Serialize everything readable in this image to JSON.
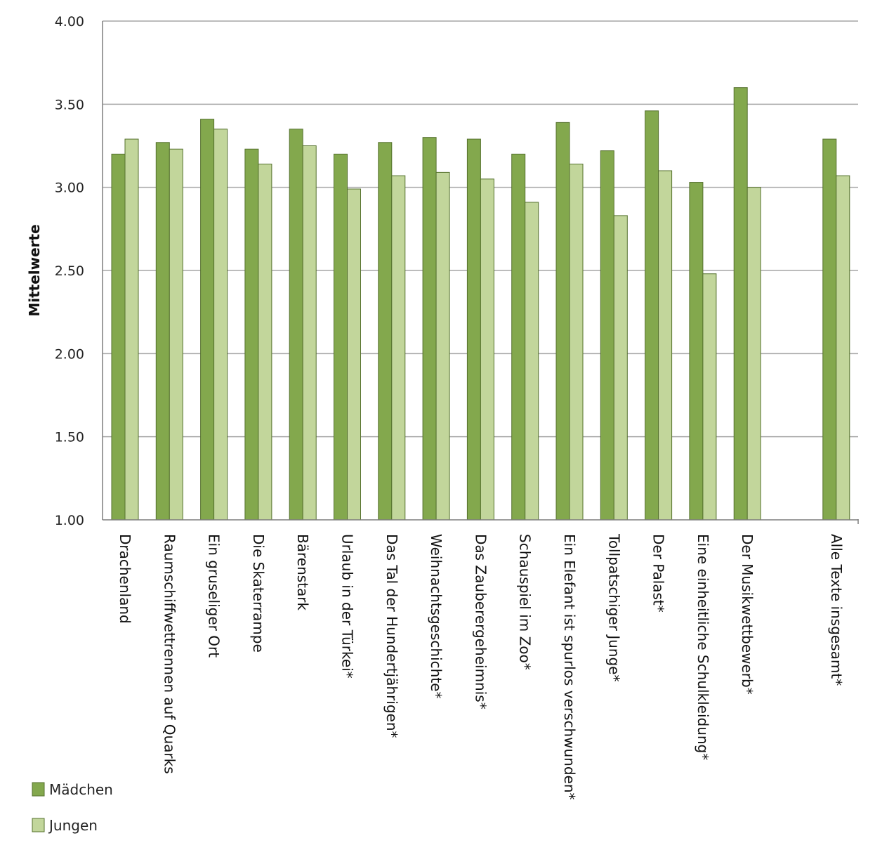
{
  "colors": {
    "maedchen": "#83a84d",
    "jungen": "#c2d69b",
    "bar_outline": "#55712e",
    "gridline": "#a6a6a6",
    "axis": "#7f7f7f"
  },
  "chart_data": {
    "type": "bar",
    "ylabel": "Mittelwerte",
    "ylim": [
      1.0,
      4.0
    ],
    "yticks": [
      "1.00",
      "1.50",
      "2.00",
      "2.50",
      "3.00",
      "3.50",
      "4.00"
    ],
    "grid": true,
    "legend_position": "bottom-left",
    "categories": [
      "Drachenland",
      "Raumschiffwettrennen auf Quarks",
      "Ein gruseliger Ort",
      "Die Skaterrampe",
      "Bärenstark",
      "Urlaub in der Türkei*",
      "Das Tal der Hundertjährigen*",
      "Weihnachtsgeschichte*",
      "Das Zauberergeheimnis*",
      "Schauspiel im Zoo*",
      "Ein Elefant ist spurlos verschwunden*",
      "Tollpatschiger Junge*",
      "Der Palast*",
      "Eine einheitliche Schulkleidung*",
      "Der Musikwettbewerb*",
      "",
      "Alle Texte insgesamt*"
    ],
    "series": [
      {
        "name": "Mädchen",
        "values": [
          3.2,
          3.27,
          3.41,
          3.23,
          3.35,
          3.2,
          3.27,
          3.3,
          3.29,
          3.2,
          3.39,
          3.22,
          3.46,
          3.03,
          3.6,
          null,
          3.29
        ]
      },
      {
        "name": "Jungen",
        "values": [
          3.29,
          3.23,
          3.35,
          3.14,
          3.25,
          2.99,
          3.07,
          3.09,
          3.05,
          2.91,
          3.14,
          2.83,
          3.1,
          2.48,
          3.0,
          null,
          3.07
        ]
      }
    ]
  }
}
